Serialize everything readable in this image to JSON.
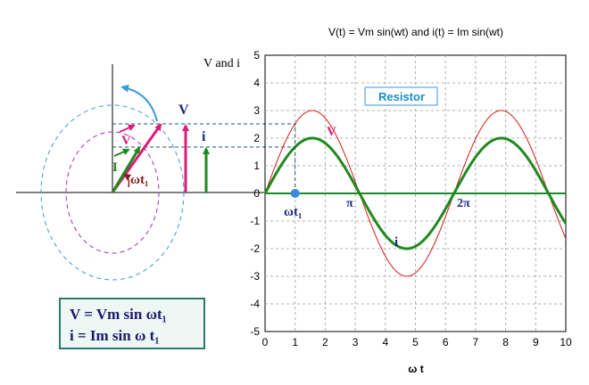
{
  "chart_data": {
    "type": "line",
    "title": "V(t) = Vm sin(wt) and i(t) = Im sin(wt)",
    "xlabel": "ω t",
    "ylabel": "V and i",
    "xlim": [
      0,
      10
    ],
    "ylim": [
      -5,
      5
    ],
    "x_ticks": [
      "0",
      "1",
      "2",
      "3",
      "4",
      "5",
      "6",
      "7",
      "8",
      "9",
      "10"
    ],
    "y_ticks": [
      "5",
      "4",
      "3",
      "2",
      "1",
      "0",
      "-1",
      "-2",
      "-3",
      "-4",
      "-5"
    ],
    "grid": true,
    "series": [
      {
        "name": "V",
        "amplitude": 3,
        "color": "#d41c1c"
      },
      {
        "name": "i",
        "amplitude": 2,
        "color": "#1e8a1e"
      }
    ],
    "marker_point": {
      "x": 1,
      "y": 0,
      "label": "ωt₁"
    },
    "annotations": {
      "pi": "π",
      "two_pi": "2π",
      "v_label": "V",
      "i_label": "i"
    },
    "legend_box": "Resistor"
  },
  "phasor": {
    "label_V_arrow": "V",
    "label_I_arrow": "I",
    "label_V_bar": "V",
    "label_i_bar": "i",
    "angle_label": "ωt₁"
  },
  "formulas": {
    "line1": "V = Vm sin ωt₁",
    "line2": "i  = Im sin ω t₁"
  },
  "colors": {
    "v_curve": "#d41c1c",
    "i_curve": "#1e8a1e",
    "v_phasor": "#e0197a",
    "axis_teal": "#1a8a2a",
    "dash_blue": "#3a9ad8",
    "dash_purple": "#a030c0",
    "dark_red": "#8b1a1a",
    "navy": "#1a2a7a"
  }
}
